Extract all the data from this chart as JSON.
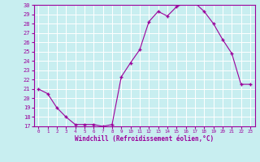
{
  "x": [
    0,
    1,
    2,
    3,
    4,
    5,
    6,
    7,
    8,
    9,
    10,
    11,
    12,
    13,
    14,
    15,
    16,
    17,
    18,
    19,
    20,
    21,
    22,
    23
  ],
  "y": [
    21,
    20.5,
    19,
    18,
    17.2,
    17.2,
    17.2,
    17,
    17.2,
    22.3,
    23.8,
    25.2,
    28.2,
    29.3,
    28.8,
    29.8,
    30.2,
    30.2,
    29.3,
    28.0,
    26.3,
    24.8,
    21.5,
    21.5
  ],
  "line_color": "#9b009b",
  "marker": "+",
  "marker_color": "#9b009b",
  "bg_color": "#c8eef0",
  "grid_color": "#ffffff",
  "axis_color": "#9b009b",
  "tick_color": "#9b009b",
  "xlabel": "Windchill (Refroidissement éolien,°C)",
  "xlabel_color": "#9b009b",
  "ylim": [
    17,
    30
  ],
  "yticks": [
    17,
    18,
    19,
    20,
    21,
    22,
    23,
    24,
    25,
    26,
    27,
    28,
    29,
    30
  ],
  "xticks": [
    0,
    1,
    2,
    3,
    4,
    5,
    6,
    7,
    8,
    9,
    10,
    11,
    12,
    13,
    14,
    15,
    16,
    17,
    18,
    19,
    20,
    21,
    22,
    23
  ],
  "font_family": "monospace",
  "xlim": [
    -0.5,
    23.5
  ]
}
